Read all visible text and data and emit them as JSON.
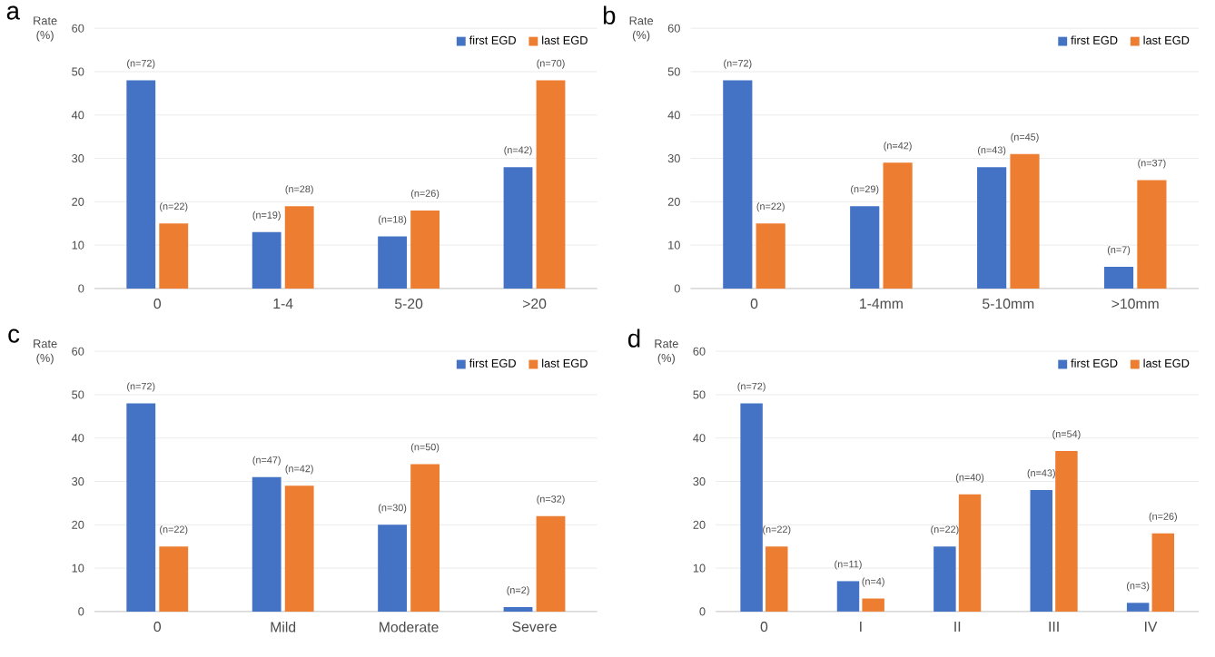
{
  "chart_data": [
    {
      "type": "bar",
      "title": "a",
      "ylabel": "Rate (%)",
      "categories": [
        "0",
        "1-4",
        "5-20",
        ">20"
      ],
      "ylim": [
        0,
        60
      ],
      "yticks": [
        0,
        10,
        20,
        30,
        40,
        50,
        60
      ],
      "grid": "y",
      "legend": "top right",
      "series": [
        {
          "name": "first EGD",
          "color": "#4472c4",
          "values": [
            48,
            13,
            12,
            28
          ]
        },
        {
          "name": "last EGD",
          "color": "#ed7d31",
          "values": [
            15,
            19,
            18,
            48
          ]
        }
      ],
      "annotations": [
        {
          "text": "(n=72)",
          "x": "0",
          "y": 48
        },
        {
          "text": "(n=19)",
          "x": "1-4",
          "y": 13
        },
        {
          "text": "(n=18)",
          "x": "5-20",
          "y": 12
        },
        {
          "text": "(n=42)",
          "x": ">20",
          "y": 28
        },
        {
          "text": "(n=22)",
          "x": "0",
          "y": 15
        },
        {
          "text": "(n=28)",
          "x": "1-4",
          "y": 19
        },
        {
          "text": "(n=26)",
          "x": "5-20",
          "y": 18
        },
        {
          "text": "(n=70)",
          "x": ">20",
          "y": 48
        }
      ]
    },
    {
      "type": "bar",
      "title": "b",
      "ylabel": "Rate (%)",
      "categories": [
        "0",
        "1-4mm",
        "5-10mm",
        ">10mm"
      ],
      "ylim": [
        0,
        60
      ],
      "yticks": [
        0,
        10,
        20,
        30,
        40,
        50,
        60
      ],
      "grid": "y",
      "legend": "top right",
      "series": [
        {
          "name": "first EGD",
          "color": "#4472c4",
          "values": [
            48,
            19,
            28,
            5
          ]
        },
        {
          "name": "last EGD",
          "color": "#ed7d31",
          "values": [
            15,
            29,
            31,
            25
          ]
        }
      ],
      "annotations": [
        {
          "text": "(n=72)",
          "x": "0",
          "y": 48
        },
        {
          "text": "(n=29)",
          "x": "1-4mm",
          "y": 19
        },
        {
          "text": "(n=43)",
          "x": "5-10mm",
          "y": 28
        },
        {
          "text": "(n=7)",
          "x": ">10mm",
          "y": 5
        },
        {
          "text": "(n=22)",
          "x": "0",
          "y": 15
        },
        {
          "text": "(n=42)",
          "x": "1-4mm",
          "y": 29
        },
        {
          "text": "(n=45)",
          "x": "5-10mm",
          "y": 31
        },
        {
          "text": "(n=37)",
          "x": ">10mm",
          "y": 25
        }
      ]
    },
    {
      "type": "bar",
      "title": "c",
      "ylabel": "Rate (%)",
      "categories": [
        "0",
        "Mild",
        "Moderate",
        "Severe"
      ],
      "ylim": [
        0,
        60
      ],
      "yticks": [
        0,
        10,
        20,
        30,
        40,
        50,
        60
      ],
      "grid": "y",
      "legend": "top right",
      "series": [
        {
          "name": "first EGD",
          "color": "#4472c4",
          "values": [
            48,
            31,
            20,
            1
          ]
        },
        {
          "name": "last EGD",
          "color": "#ed7d31",
          "values": [
            15,
            29,
            34,
            22
          ]
        }
      ],
      "annotations": [
        {
          "text": "(n=72)",
          "x": "0",
          "y": 48
        },
        {
          "text": "(n=47)",
          "x": "Mild",
          "y": 31
        },
        {
          "text": "(n=30)",
          "x": "Moderate",
          "y": 20
        },
        {
          "text": "(n=2)",
          "x": "Severe",
          "y": 1
        },
        {
          "text": "(n=22)",
          "x": "0",
          "y": 15
        },
        {
          "text": "(n=42)",
          "x": "Mild",
          "y": 29
        },
        {
          "text": "(n=50)",
          "x": "Moderate",
          "y": 34
        },
        {
          "text": "(n=32)",
          "x": "Severe",
          "y": 22
        }
      ]
    },
    {
      "type": "bar",
      "title": "d",
      "ylabel": "Rate (%)",
      "categories": [
        "0",
        "I",
        "II",
        "III",
        "IV"
      ],
      "ylim": [
        0,
        60
      ],
      "yticks": [
        0,
        10,
        20,
        30,
        40,
        50,
        60
      ],
      "grid": "y",
      "legend": "top right",
      "series": [
        {
          "name": "first EGD",
          "color": "#4472c4",
          "values": [
            48,
            7,
            15,
            28,
            2
          ]
        },
        {
          "name": "last EGD",
          "color": "#ed7d31",
          "values": [
            15,
            3,
            27,
            37,
            18
          ]
        }
      ],
      "annotations": [
        {
          "text": "(n=72)",
          "x": "0",
          "y": 48
        },
        {
          "text": "(n=11)",
          "x": "I",
          "y": 7
        },
        {
          "text": "(n=22)",
          "x": "II",
          "y": 15
        },
        {
          "text": "(n=43)",
          "x": "III",
          "y": 28
        },
        {
          "text": "(n=3)",
          "x": "IV",
          "y": 2
        },
        {
          "text": "(n=22)",
          "x": "0",
          "y": 15
        },
        {
          "text": "(n=4)",
          "x": "I",
          "y": 3
        },
        {
          "text": "(n=40)",
          "x": "II",
          "y": 27
        },
        {
          "text": "(n=54)",
          "x": "III",
          "y": 37
        },
        {
          "text": "(n=26)",
          "x": "IV",
          "y": 18
        }
      ]
    }
  ]
}
